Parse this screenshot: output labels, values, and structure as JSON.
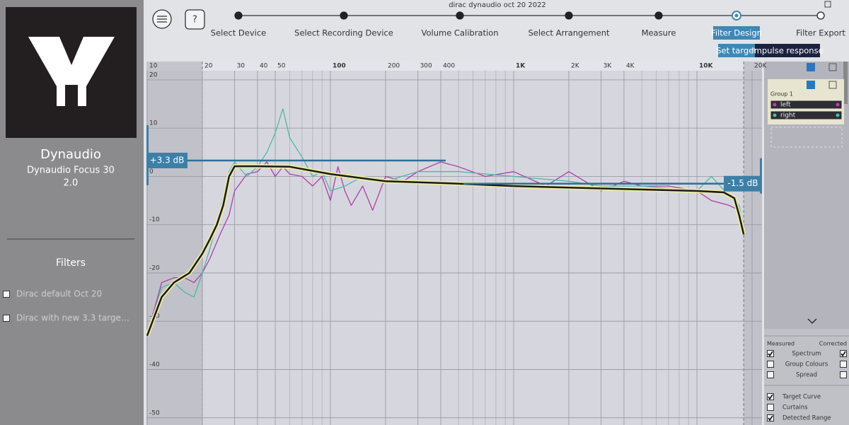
{
  "window_title": "dirac dynaudio oct 20 2022",
  "sidebar": {
    "brand": "Dynaudio",
    "product": "Dynaudio Focus 30",
    "version": "2.0",
    "filters_heading": "Filters",
    "filters": [
      "Dirac default Oct 20",
      "Dirac with new 3.3 targe…"
    ]
  },
  "steps": [
    "Select Device",
    "Select Recording Device",
    "Volume Calibration",
    "Select Arrangement",
    "Measure",
    "Filter Design",
    "Filter Export"
  ],
  "active_step": 5,
  "tabs": [
    "Set target",
    "Impulse response"
  ],
  "active_tab": 0,
  "chart": {
    "type": "line",
    "xscale": "log",
    "xlim": [
      10,
      22650
    ],
    "ylim": [
      -51.5,
      21.9
    ],
    "xticks": [
      10,
      20,
      30,
      40,
      50,
      100,
      200,
      300,
      400,
      {
        "value": 1000,
        "label": "1K"
      },
      {
        "value": 2000,
        "label": "2K"
      },
      {
        "value": 3000,
        "label": "3K"
      },
      {
        "value": 4000,
        "label": "4K"
      },
      {
        "value": 10000,
        "label": "10K"
      },
      {
        "value": 20000,
        "label": "20K"
      }
    ],
    "xgrid_minor": [
      60,
      70,
      80,
      90,
      500,
      600,
      700,
      800,
      900,
      5000,
      6000,
      7000,
      8000,
      9000
    ],
    "yticks": [
      20,
      10,
      0,
      -10,
      -20,
      -30,
      -40,
      -50
    ],
    "detected_range": [
      20,
      18000
    ],
    "series": [
      {
        "name": "left",
        "color": "#b03caa",
        "x": [
          10,
          12,
          14,
          16,
          18,
          20,
          22,
          25,
          28,
          30,
          35,
          40,
          45,
          50,
          55,
          60,
          70,
          80,
          90,
          100,
          110,
          120,
          130,
          150,
          170,
          200,
          250,
          300,
          400,
          500,
          700,
          1000,
          1500,
          2000,
          3000,
          4000,
          5000,
          7000,
          10000,
          12000,
          15000,
          17000,
          18000
        ],
        "values": [
          -33,
          -22,
          -21,
          -21,
          -22,
          -20,
          -17,
          -12,
          -8,
          -3,
          0.5,
          1,
          3,
          0,
          2,
          0.5,
          0,
          -2,
          0,
          -5,
          2,
          -3,
          -6,
          -2,
          -7,
          0,
          -1,
          1,
          3,
          2,
          0,
          1,
          -2,
          1,
          -3,
          -1,
          -2,
          -2,
          -3,
          -5,
          -6,
          -7,
          -12
        ]
      },
      {
        "name": "right",
        "color": "#4db8a8",
        "x": [
          10,
          12,
          14,
          16,
          18,
          20,
          22,
          25,
          28,
          30,
          35,
          40,
          45,
          50,
          55,
          60,
          70,
          80,
          90,
          100,
          120,
          150,
          200,
          300,
          500,
          1000,
          2000,
          3000,
          5000,
          10000,
          12000,
          15000,
          17000,
          18000
        ],
        "values": [
          -33,
          -23,
          -22,
          -24,
          -25,
          -20,
          -15,
          -7,
          1,
          3,
          0,
          2,
          5,
          9,
          14,
          8,
          4,
          0,
          1,
          -3,
          -2,
          0,
          -1,
          1,
          1,
          0,
          -1,
          -2,
          -2,
          -3,
          0,
          -4,
          -6,
          -11
        ]
      },
      {
        "name": "target",
        "color": "#1a1a1a",
        "x": [
          10,
          12,
          14,
          17,
          20,
          22,
          24,
          26,
          28,
          30,
          40,
          60,
          100,
          200,
          500,
          1000,
          3000,
          10000,
          14000,
          16000,
          17000,
          18000
        ],
        "values": [
          -33,
          -25,
          -22,
          -20,
          -16,
          -13,
          -10,
          -6,
          0,
          2.1,
          2.1,
          2,
          0.5,
          -1,
          -1.5,
          -2,
          -2.5,
          -3,
          -3.3,
          -4.5,
          -8,
          -12
        ]
      }
    ],
    "annotations": [
      {
        "label": "+3.3 dB",
        "value": 3.3
      },
      {
        "label": "-1.5 dB",
        "value": -1.5
      }
    ]
  },
  "right_panel": {
    "group": "Group 1",
    "channels": [
      {
        "name": "left",
        "color": "#c53ab8"
      },
      {
        "name": "right",
        "color": "#3fc1b0"
      }
    ],
    "measured": "Measured",
    "corrected": "Corrected",
    "options": [
      {
        "label": "Spectrum",
        "measured": true,
        "corrected": true
      },
      {
        "label": "Group Colours",
        "measured": false,
        "corrected": false
      },
      {
        "label": "Spread",
        "measured": false,
        "corrected": false
      }
    ],
    "toggles": [
      {
        "label": "Target Curve",
        "checked": true
      },
      {
        "label": "Curtains",
        "checked": false
      },
      {
        "label": "Detected Range",
        "checked": true
      }
    ]
  }
}
